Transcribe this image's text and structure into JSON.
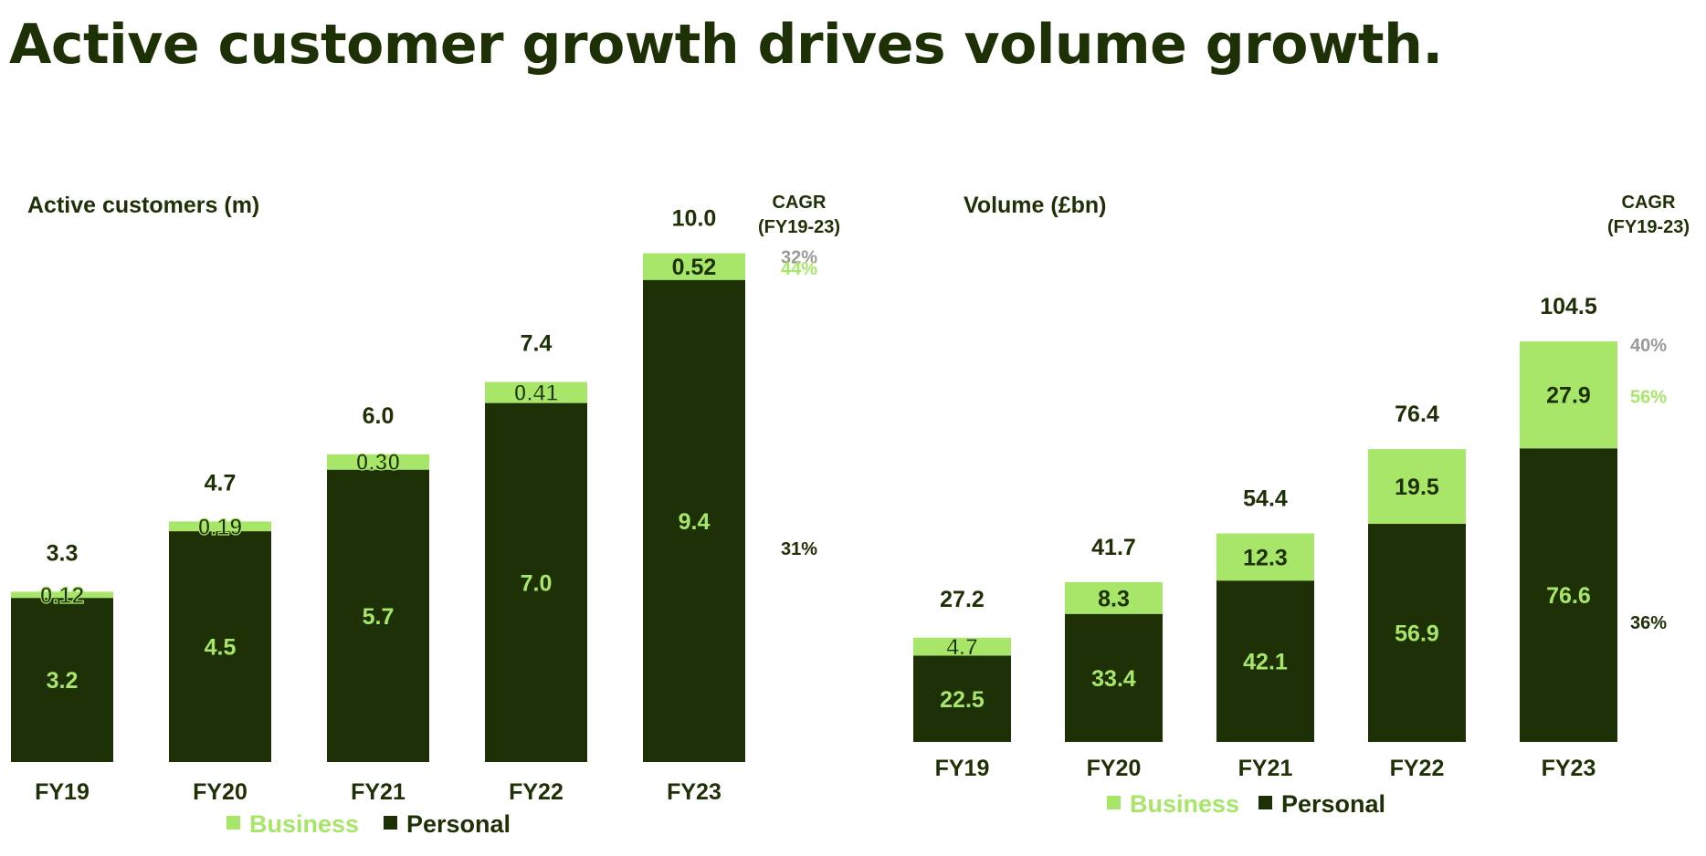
{
  "title": "Active customer growth drives volume growth.",
  "colors": {
    "business": "#a8e66a",
    "personal": "#1e3005",
    "text": "#1e3005",
    "total_cagr": "#9a9a9a"
  },
  "chart_data": [
    {
      "type": "bar",
      "stacked": true,
      "title": "Active customers (m)",
      "categories": [
        "FY19",
        "FY20",
        "FY21",
        "FY22",
        "FY23"
      ],
      "series": [
        {
          "name": "Personal",
          "values": [
            3.2,
            4.5,
            5.7,
            7.0,
            9.4
          ],
          "labels": [
            "3.2",
            "4.5",
            "5.7",
            "7.0",
            "9.4"
          ]
        },
        {
          "name": "Business",
          "values": [
            0.12,
            0.19,
            0.3,
            0.41,
            0.52
          ],
          "labels": [
            "0.12",
            "0.19",
            "0.30",
            "0.41",
            "0.52"
          ]
        }
      ],
      "totals": [
        "3.3",
        "4.7",
        "6.0",
        "7.4",
        "10.0"
      ],
      "cagr_header": [
        "CAGR",
        "(FY19-23)"
      ],
      "cagr": {
        "total": "32%",
        "business": "44%",
        "personal": "31%"
      },
      "legend": [
        "Business",
        "Personal"
      ],
      "legend_position": "bottom",
      "grid": false
    },
    {
      "type": "bar",
      "stacked": true,
      "title": "Volume (£bn)",
      "categories": [
        "FY19",
        "FY20",
        "FY21",
        "FY22",
        "FY23"
      ],
      "series": [
        {
          "name": "Personal",
          "values": [
            22.5,
            33.4,
            42.1,
            56.9,
            76.6
          ],
          "labels": [
            "22.5",
            "33.4",
            "42.1",
            "56.9",
            "76.6"
          ]
        },
        {
          "name": "Business",
          "values": [
            4.7,
            8.3,
            12.3,
            19.5,
            27.9
          ],
          "labels": [
            "4.7",
            "8.3",
            "12.3",
            "19.5",
            "27.9"
          ]
        }
      ],
      "totals": [
        "27.2",
        "41.7",
        "54.4",
        "76.4",
        "104.5"
      ],
      "cagr_header": [
        "CAGR",
        "(FY19-23)"
      ],
      "cagr": {
        "total": "40%",
        "business": "56%",
        "personal": "36%"
      },
      "legend": [
        "Business",
        "Personal"
      ],
      "legend_position": "bottom",
      "grid": false
    }
  ]
}
